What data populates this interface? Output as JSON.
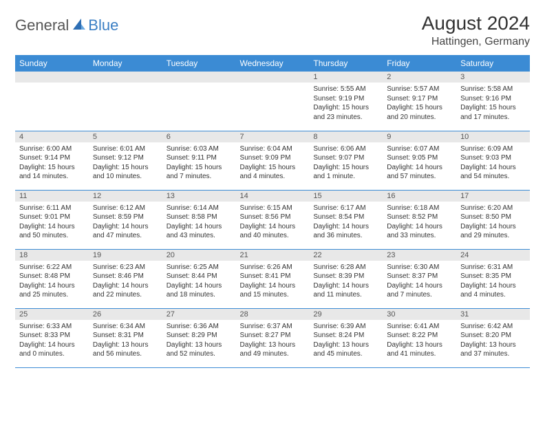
{
  "brand": {
    "text1": "General",
    "text2": "Blue"
  },
  "title": "August 2024",
  "location": "Hattingen, Germany",
  "colors": {
    "header_bg": "#3b8bd4",
    "header_text": "#ffffff",
    "daynum_bg": "#e8e8e8",
    "cell_border": "#3b8bd4",
    "brand_gray": "#555555",
    "brand_blue": "#3b7fc4"
  },
  "fonts": {
    "title_size": 28,
    "location_size": 16,
    "th_size": 12,
    "cell_size": 10
  },
  "weekdays": [
    "Sunday",
    "Monday",
    "Tuesday",
    "Wednesday",
    "Thursday",
    "Friday",
    "Saturday"
  ],
  "weeks": [
    [
      null,
      null,
      null,
      null,
      {
        "n": "1",
        "sr": "5:55 AM",
        "ss": "9:19 PM",
        "dl": "15 hours and 23 minutes."
      },
      {
        "n": "2",
        "sr": "5:57 AM",
        "ss": "9:17 PM",
        "dl": "15 hours and 20 minutes."
      },
      {
        "n": "3",
        "sr": "5:58 AM",
        "ss": "9:16 PM",
        "dl": "15 hours and 17 minutes."
      }
    ],
    [
      {
        "n": "4",
        "sr": "6:00 AM",
        "ss": "9:14 PM",
        "dl": "15 hours and 14 minutes."
      },
      {
        "n": "5",
        "sr": "6:01 AM",
        "ss": "9:12 PM",
        "dl": "15 hours and 10 minutes."
      },
      {
        "n": "6",
        "sr": "6:03 AM",
        "ss": "9:11 PM",
        "dl": "15 hours and 7 minutes."
      },
      {
        "n": "7",
        "sr": "6:04 AM",
        "ss": "9:09 PM",
        "dl": "15 hours and 4 minutes."
      },
      {
        "n": "8",
        "sr": "6:06 AM",
        "ss": "9:07 PM",
        "dl": "15 hours and 1 minute."
      },
      {
        "n": "9",
        "sr": "6:07 AM",
        "ss": "9:05 PM",
        "dl": "14 hours and 57 minutes."
      },
      {
        "n": "10",
        "sr": "6:09 AM",
        "ss": "9:03 PM",
        "dl": "14 hours and 54 minutes."
      }
    ],
    [
      {
        "n": "11",
        "sr": "6:11 AM",
        "ss": "9:01 PM",
        "dl": "14 hours and 50 minutes."
      },
      {
        "n": "12",
        "sr": "6:12 AM",
        "ss": "8:59 PM",
        "dl": "14 hours and 47 minutes."
      },
      {
        "n": "13",
        "sr": "6:14 AM",
        "ss": "8:58 PM",
        "dl": "14 hours and 43 minutes."
      },
      {
        "n": "14",
        "sr": "6:15 AM",
        "ss": "8:56 PM",
        "dl": "14 hours and 40 minutes."
      },
      {
        "n": "15",
        "sr": "6:17 AM",
        "ss": "8:54 PM",
        "dl": "14 hours and 36 minutes."
      },
      {
        "n": "16",
        "sr": "6:18 AM",
        "ss": "8:52 PM",
        "dl": "14 hours and 33 minutes."
      },
      {
        "n": "17",
        "sr": "6:20 AM",
        "ss": "8:50 PM",
        "dl": "14 hours and 29 minutes."
      }
    ],
    [
      {
        "n": "18",
        "sr": "6:22 AM",
        "ss": "8:48 PM",
        "dl": "14 hours and 25 minutes."
      },
      {
        "n": "19",
        "sr": "6:23 AM",
        "ss": "8:46 PM",
        "dl": "14 hours and 22 minutes."
      },
      {
        "n": "20",
        "sr": "6:25 AM",
        "ss": "8:44 PM",
        "dl": "14 hours and 18 minutes."
      },
      {
        "n": "21",
        "sr": "6:26 AM",
        "ss": "8:41 PM",
        "dl": "14 hours and 15 minutes."
      },
      {
        "n": "22",
        "sr": "6:28 AM",
        "ss": "8:39 PM",
        "dl": "14 hours and 11 minutes."
      },
      {
        "n": "23",
        "sr": "6:30 AM",
        "ss": "8:37 PM",
        "dl": "14 hours and 7 minutes."
      },
      {
        "n": "24",
        "sr": "6:31 AM",
        "ss": "8:35 PM",
        "dl": "14 hours and 4 minutes."
      }
    ],
    [
      {
        "n": "25",
        "sr": "6:33 AM",
        "ss": "8:33 PM",
        "dl": "14 hours and 0 minutes."
      },
      {
        "n": "26",
        "sr": "6:34 AM",
        "ss": "8:31 PM",
        "dl": "13 hours and 56 minutes."
      },
      {
        "n": "27",
        "sr": "6:36 AM",
        "ss": "8:29 PM",
        "dl": "13 hours and 52 minutes."
      },
      {
        "n": "28",
        "sr": "6:37 AM",
        "ss": "8:27 PM",
        "dl": "13 hours and 49 minutes."
      },
      {
        "n": "29",
        "sr": "6:39 AM",
        "ss": "8:24 PM",
        "dl": "13 hours and 45 minutes."
      },
      {
        "n": "30",
        "sr": "6:41 AM",
        "ss": "8:22 PM",
        "dl": "13 hours and 41 minutes."
      },
      {
        "n": "31",
        "sr": "6:42 AM",
        "ss": "8:20 PM",
        "dl": "13 hours and 37 minutes."
      }
    ]
  ],
  "labels": {
    "sunrise": "Sunrise:",
    "sunset": "Sunset:",
    "daylight": "Daylight:"
  }
}
